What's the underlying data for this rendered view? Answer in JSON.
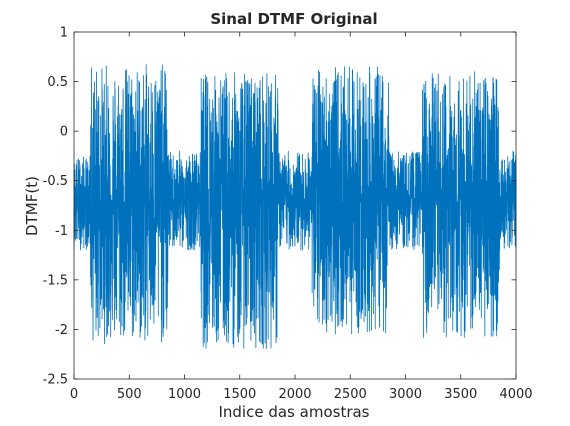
{
  "chart_data": {
    "type": "line",
    "title": "Sinal DTMF Original",
    "xlabel": "Indice das amostras",
    "ylabel": "DTMF(t)",
    "xlim": [
      0,
      4000
    ],
    "ylim": [
      -2.5,
      1
    ],
    "x_ticks": [
      "0",
      "500",
      "1000",
      "1500",
      "2000",
      "2500",
      "3000",
      "3500",
      "4000"
    ],
    "y_ticks": [
      "1",
      "0.5",
      "0",
      "-0.5",
      "-1",
      "-1.5",
      "-2",
      "-2.5"
    ],
    "grid": false,
    "legend": "none",
    "series": [
      {
        "color": "#0072bd",
        "n_samples": 4000,
        "baseline": -0.7,
        "segments": [
          {
            "x": [
              0,
              150
            ],
            "min": -1.2,
            "max": -0.25
          },
          {
            "x": [
              150,
              850
            ],
            "min": -2.15,
            "max": 0.68
          },
          {
            "x": [
              850,
              1150
            ],
            "min": -1.2,
            "max": -0.2
          },
          {
            "x": [
              1150,
              1850
            ],
            "min": -2.2,
            "max": 0.6
          },
          {
            "x": [
              1850,
              2150
            ],
            "min": -1.2,
            "max": -0.2
          },
          {
            "x": [
              2150,
              2850
            ],
            "min": -2.05,
            "max": 0.65
          },
          {
            "x": [
              2850,
              3150
            ],
            "min": -1.2,
            "max": -0.2
          },
          {
            "x": [
              3150,
              3850
            ],
            "min": -2.1,
            "max": 0.6
          },
          {
            "x": [
              3850,
              4000
            ],
            "min": -1.2,
            "max": -0.2
          }
        ]
      }
    ]
  }
}
